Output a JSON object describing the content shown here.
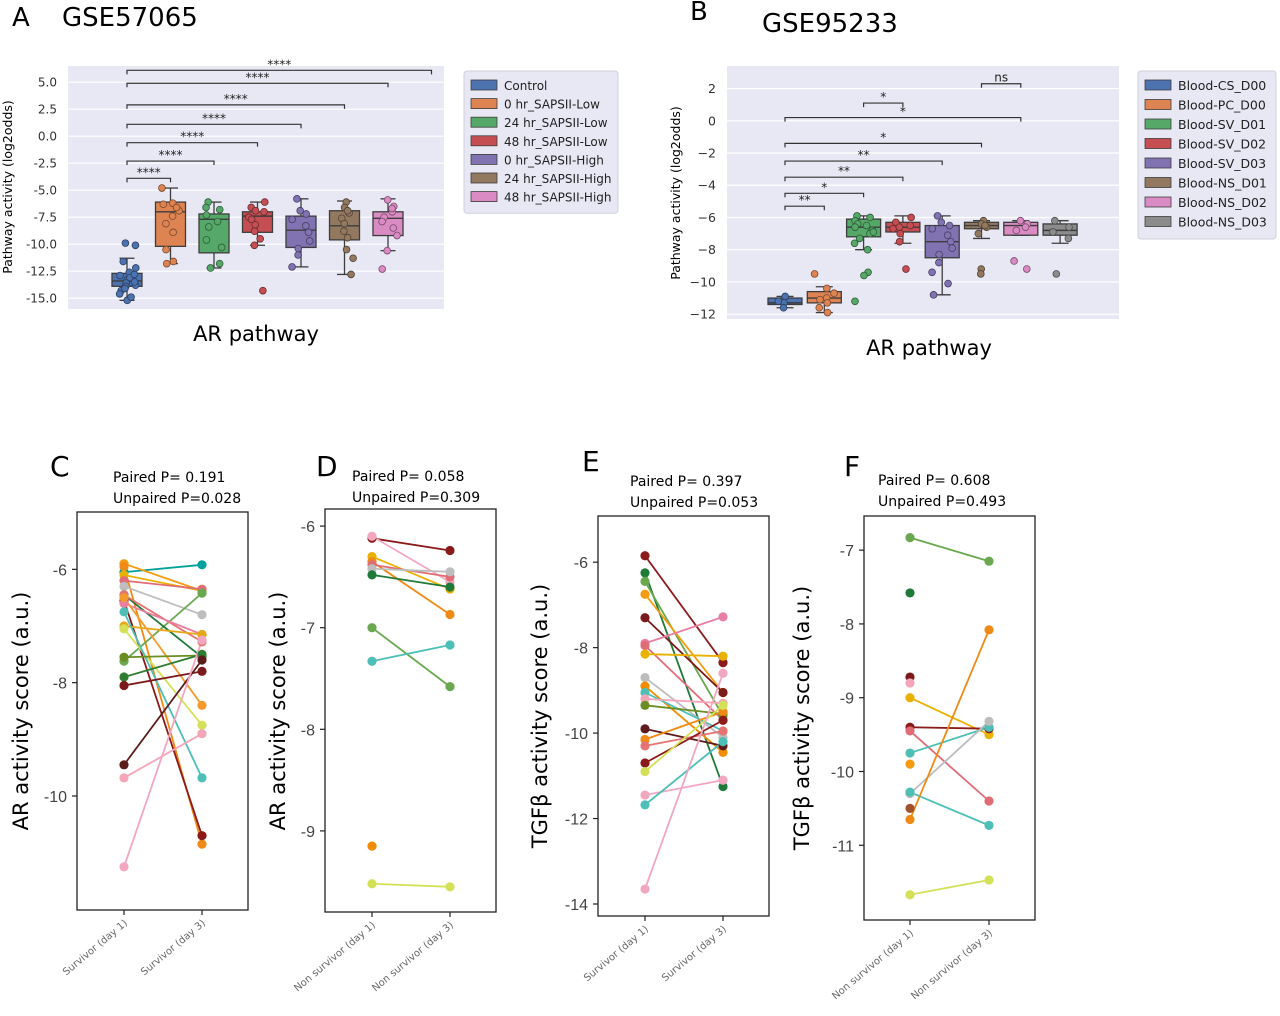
{
  "figure": {
    "panel_A_letter": "A",
    "panel_A_title": "GSE57065",
    "panel_B_letter": "B",
    "panel_B_title": "GSE95233",
    "panel_C_letter": "C",
    "panel_D_letter": "D",
    "panel_E_letter": "E",
    "panel_F_letter": "F"
  },
  "colors": {
    "plot_bg": "#e8e8f4",
    "grid": "#ffffff"
  },
  "chart_data": [
    {
      "id": "A",
      "type": "box",
      "title": "GSE57065",
      "xlabel": "AR pathway",
      "ylabel": "Pathway activity (log2odds)",
      "ylim": [
        -16,
        6.5
      ],
      "yticks": [
        5.0,
        2.5,
        0.0,
        -2.5,
        -5.0,
        -7.5,
        -10.0,
        -12.5,
        -15.0
      ],
      "ytick_labels": [
        "5.0",
        "2.5",
        "0.0",
        "-2.5",
        "-5.0",
        "-7.5",
        "-10.0",
        "-12.5",
        "-15.0"
      ],
      "grid": true,
      "legend_position": "outside-right",
      "groups": [
        {
          "name": "Control",
          "color": "#4c72b0",
          "q1": -13.9,
          "median": -13.4,
          "q3": -12.7,
          "wlo": -15.2,
          "whi": -11.3,
          "points": [
            -13.3,
            -13.6,
            -13.9,
            -14.3,
            -14.6,
            -15.2,
            -12.9,
            -12.6,
            -13.1,
            -12.2,
            -11.6,
            -13.8,
            -14.1,
            -14.9,
            -10.1,
            -9.9,
            -12.8,
            -13.5
          ]
        },
        {
          "name": "0 hr_SAPSII-Low",
          "color": "#dd8452",
          "q1": -10.2,
          "median": -7.0,
          "q3": -6.1,
          "wlo": -11.8,
          "whi": -4.8,
          "points": [
            -4.8,
            -6.2,
            -6.9,
            -7.4,
            -8.9,
            -10.5,
            -11.6,
            -11.8,
            -6.6,
            -8.1,
            -6.3
          ]
        },
        {
          "name": "24 hr_SAPSII-Low",
          "color": "#55a868",
          "q1": -10.8,
          "median": -7.7,
          "q3": -7.2,
          "wlo": -12.2,
          "whi": -6.1,
          "points": [
            -6.1,
            -6.8,
            -7.3,
            -8.4,
            -9.6,
            -10.3,
            -11.8,
            -12.2,
            -6.6,
            -7.9
          ]
        },
        {
          "name": "48 hr_SAPSII-Low",
          "color": "#c44e52",
          "q1": -8.9,
          "median": -7.4,
          "q3": -7.0,
          "wlo": -10.1,
          "whi": -6.1,
          "points": [
            -6.1,
            -6.6,
            -7.0,
            -7.5,
            -8.2,
            -8.8,
            -9.5,
            -10.1,
            -14.3,
            -6.9,
            -7.7
          ]
        },
        {
          "name": "0 hr_SAPSII-High",
          "color": "#8172b2",
          "q1": -10.3,
          "median": -8.7,
          "q3": -7.4,
          "wlo": -12.1,
          "whi": -5.8,
          "points": [
            -5.8,
            -6.9,
            -7.7,
            -8.3,
            -8.9,
            -9.7,
            -10.4,
            -11.0,
            -12.1,
            -7.2
          ]
        },
        {
          "name": "24 hr_SAPSII-High",
          "color": "#937860",
          "q1": -9.6,
          "median": -8.3,
          "q3": -6.9,
          "wlo": -12.8,
          "whi": -6.0,
          "points": [
            -6.1,
            -6.6,
            -7.1,
            -7.6,
            -8.1,
            -8.8,
            -9.4,
            -10.5,
            -11.3,
            -12.8,
            -6.9
          ]
        },
        {
          "name": "48 hr_SAPSII-High",
          "color": "#da8bc3",
          "q1": -9.2,
          "median": -7.6,
          "q3": -7.0,
          "wlo": -10.6,
          "whi": -5.8,
          "points": [
            -5.9,
            -6.5,
            -7.0,
            -7.5,
            -7.9,
            -8.5,
            -9.2,
            -10.6,
            -12.3,
            -6.7
          ]
        }
      ],
      "significance": [
        {
          "from": 0,
          "to": 1,
          "y": -3.9,
          "label": "****"
        },
        {
          "from": 0,
          "to": 2,
          "y": -2.3,
          "label": "****"
        },
        {
          "from": 0,
          "to": 3,
          "y": -0.6,
          "label": "****"
        },
        {
          "from": 0,
          "to": 4,
          "y": 1.1,
          "label": "****"
        },
        {
          "from": 0,
          "to": 5,
          "y": 2.9,
          "label": "****"
        },
        {
          "from": 0,
          "to": 6,
          "y": 4.9,
          "label": "****"
        },
        {
          "from": 0,
          "to": 7,
          "y": 6.1,
          "label": "****"
        }
      ]
    },
    {
      "id": "B",
      "type": "box",
      "title": "GSE95233",
      "xlabel": "AR pathway",
      "ylabel": "Pathway activity (log2odds)",
      "ylim": [
        -12.3,
        3.4
      ],
      "yticks": [
        2,
        0,
        -2,
        -4,
        -6,
        -8,
        -10,
        -12
      ],
      "ytick_labels": [
        "2",
        "0",
        "−2",
        "−4",
        "−6",
        "−8",
        "−10",
        "−12"
      ],
      "grid": true,
      "legend_position": "outside-right",
      "groups": [
        {
          "name": "Blood-CS_D00",
          "color": "#4c72b0",
          "q1": -11.4,
          "median": -11.3,
          "q3": -11.0,
          "wlo": -11.6,
          "whi": -10.9,
          "points": [
            -10.9,
            -11.3,
            -11.6,
            -11.2
          ]
        },
        {
          "name": "Blood-PC_D00",
          "color": "#dd8452",
          "q1": -11.3,
          "median": -11.0,
          "q3": -10.6,
          "wlo": -11.9,
          "whi": -10.3,
          "points": [
            -9.5,
            -10.4,
            -10.7,
            -11.0,
            -11.3,
            -11.6,
            -11.9,
            -11.1
          ]
        },
        {
          "name": "Blood-SV_D01",
          "color": "#55a868",
          "q1": -7.2,
          "median": -6.6,
          "q3": -6.1,
          "wlo": -8.0,
          "whi": -5.9,
          "points": [
            -5.9,
            -6.0,
            -6.2,
            -6.4,
            -6.6,
            -6.8,
            -7.0,
            -7.3,
            -7.6,
            -8.0,
            -9.4,
            -9.6,
            -11.2,
            -6.5,
            -6.9
          ]
        },
        {
          "name": "Blood-SV_D02",
          "color": "#c44e52",
          "q1": -6.9,
          "median": -6.6,
          "q3": -6.3,
          "wlo": -7.6,
          "whi": -5.9,
          "points": [
            -6.0,
            -6.3,
            -6.5,
            -6.7,
            -7.0,
            -7.5,
            -9.2,
            -6.6
          ]
        },
        {
          "name": "Blood-SV_D03",
          "color": "#8172b2",
          "q1": -8.5,
          "median": -7.5,
          "q3": -6.5,
          "wlo": -10.8,
          "whi": -5.9,
          "points": [
            -5.9,
            -6.3,
            -6.7,
            -7.1,
            -7.5,
            -7.9,
            -8.3,
            -8.8,
            -9.4,
            -10.1,
            -10.8,
            -6.5
          ]
        },
        {
          "name": "Blood-NS_D01",
          "color": "#937860",
          "q1": -6.7,
          "median": -6.5,
          "q3": -6.3,
          "wlo": -7.3,
          "whi": -6.2,
          "points": [
            -6.2,
            -6.4,
            -6.6,
            -7.0,
            -9.2,
            -9.5,
            -6.5
          ]
        },
        {
          "name": "Blood-NS_D02",
          "color": "#da8bc3",
          "q1": -7.1,
          "median": -6.5,
          "q3": -6.3,
          "wlo": -7.1,
          "whi": -6.2,
          "points": [
            -6.2,
            -6.4,
            -6.6,
            -6.8,
            -8.7,
            -9.2
          ]
        },
        {
          "name": "Blood-NS_D03",
          "color": "#8c8c8c",
          "q1": -7.1,
          "median": -6.8,
          "q3": -6.4,
          "wlo": -7.6,
          "whi": -6.2,
          "points": [
            -6.2,
            -6.6,
            -6.9,
            -7.3,
            -9.5
          ]
        }
      ],
      "significance": [
        {
          "from": 0,
          "to": 1,
          "y": -5.3,
          "label": "**"
        },
        {
          "from": 0,
          "to": 2,
          "y": -4.5,
          "label": "*"
        },
        {
          "from": 0,
          "to": 3,
          "y": -3.5,
          "label": "**"
        },
        {
          "from": 0,
          "to": 4,
          "y": -2.5,
          "label": "**"
        },
        {
          "from": 0,
          "to": 5,
          "y": -1.4,
          "label": "*"
        },
        {
          "from": 0,
          "to": 6,
          "y": 0.2,
          "label": "*"
        },
        {
          "from": 2,
          "to": 3,
          "y": 1.1,
          "label": "*"
        },
        {
          "from": 5,
          "to": 6,
          "y": 2.3,
          "label": "ns"
        }
      ]
    },
    {
      "id": "C",
      "type": "line",
      "stat_paired": "Paired P= 0.191",
      "stat_unpaired": "Unpaired P=0.028",
      "ylabel": "AR activity score (a.u.)",
      "categories": [
        "Survivor (day 1)",
        "Survivor (day 3)"
      ],
      "ylim": [
        -11.8,
        -5.2
      ],
      "yticks": [
        -6,
        -8,
        -10
      ],
      "ytick_labels": [
        "-6",
        "-8",
        "-10"
      ],
      "pairs": [
        {
          "color": "#00a19a",
          "y1": -6.05,
          "y2": -5.92
        },
        {
          "color": "#f39c12",
          "y1": -5.9,
          "y2": -6.38
        },
        {
          "color": "#ef8a16",
          "y1": -5.95,
          "y2": -10.85
        },
        {
          "color": "#e9b100",
          "y1": -6.1,
          "y2": -6.38
        },
        {
          "color": "#8b1a1a",
          "y1": -6.55,
          "y2": -10.7
        },
        {
          "color": "#e06c75",
          "y1": -6.2,
          "y2": -6.35
        },
        {
          "color": "#bdbdbd",
          "y1": -6.3,
          "y2": -6.8
        },
        {
          "color": "#6aa84f",
          "y1": -7.62,
          "y2": -6.42
        },
        {
          "color": "#1f7a3a",
          "y1": -6.45,
          "y2": -7.55
        },
        {
          "color": "#e57373",
          "y1": -6.45,
          "y2": -7.28
        },
        {
          "color": "#e87fa1",
          "y1": -6.6,
          "y2": -7.15
        },
        {
          "color": "#e6a817",
          "y1": -7.0,
          "y2": -7.15
        },
        {
          "color": "#d4e157",
          "y1": -7.05,
          "y2": -8.75
        },
        {
          "color": "#4dbfb6",
          "y1": -6.75,
          "y2": -9.68
        },
        {
          "color": "#f29a2e",
          "y1": -6.5,
          "y2": -8.4
        },
        {
          "color": "#6b8e23",
          "y1": -7.55,
          "y2": -7.52
        },
        {
          "color": "#2e7d32",
          "y1": -7.9,
          "y2": -7.5
        },
        {
          "color": "#7b1a1a",
          "y1": -8.05,
          "y2": -7.8
        },
        {
          "color": "#5d1c1c",
          "y1": -9.45,
          "y2": -7.6
        },
        {
          "color": "#f4a6b8",
          "y1": -9.68,
          "y2": -8.9
        },
        {
          "color": "#f2a7c0",
          "y1": -11.25,
          "y2": -7.25
        }
      ]
    },
    {
      "id": "D",
      "type": "line",
      "stat_paired": "Paired P= 0.058",
      "stat_unpaired": "Unpaired P=0.309",
      "ylabel": "AR activity score (a.u.)",
      "categories": [
        "Non survivor (day 1)",
        "Non survivor (day 3)"
      ],
      "ylim": [
        -9.68,
        -5.95
      ],
      "yticks": [
        -6,
        -7,
        -8,
        -9
      ],
      "ytick_labels": [
        "-6",
        "-7",
        "-8",
        "-9"
      ],
      "pairs": [
        {
          "color": "#8b1a1a",
          "y1": -6.12,
          "y2": -6.24
        },
        {
          "color": "#f2a7c0",
          "y1": -6.1,
          "y2": -6.55
        },
        {
          "color": "#e9b100",
          "y1": -6.3,
          "y2": -6.62
        },
        {
          "color": "#ef8a16",
          "y1": -6.35,
          "y2": -6.87
        },
        {
          "color": "#e06c75",
          "y1": -6.38,
          "y2": -6.5
        },
        {
          "color": "#bdbdbd",
          "y1": -6.42,
          "y2": -6.45
        },
        {
          "color": "#1f7a3a",
          "y1": -6.48,
          "y2": -6.6
        },
        {
          "color": "#6aa84f",
          "y1": -7.0,
          "y2": -7.58
        },
        {
          "color": "#4dbfb6",
          "y1": -7.33,
          "y2": -7.17
        },
        {
          "color": "#d4e157",
          "y1": -9.52,
          "y2": -9.55
        },
        {
          "color": "#f28c00",
          "y1": -9.15,
          "y2": null
        }
      ]
    },
    {
      "id": "E",
      "type": "line",
      "stat_paired": "Paired P= 0.397",
      "stat_unpaired": "Unpaired P=0.053",
      "ylabel": "TGFβ activity score (a.u.)",
      "categories": [
        "Survivor (day 1)",
        "Survivor (day 3)"
      ],
      "ylim": [
        -14.0,
        -5.2
      ],
      "yticks": [
        -6,
        -8,
        -10,
        -12,
        -14
      ],
      "ytick_labels": [
        "-6",
        "-8",
        "-10",
        "-12",
        "-14"
      ],
      "pairs": [
        {
          "color": "#8b1a1a",
          "y1": -5.85,
          "y2": -8.35
        },
        {
          "color": "#1f7a3a",
          "y1": -6.25,
          "y2": -11.25
        },
        {
          "color": "#6aa84f",
          "y1": -6.45,
          "y2": -9.6
        },
        {
          "color": "#f39c12",
          "y1": -6.75,
          "y2": -9.05
        },
        {
          "color": "#7b1a1a",
          "y1": -7.3,
          "y2": -9.05
        },
        {
          "color": "#e87fa1",
          "y1": -7.9,
          "y2": -7.28
        },
        {
          "color": "#e06c75",
          "y1": -7.95,
          "y2": -9.7
        },
        {
          "color": "#e9b100",
          "y1": -8.15,
          "y2": -8.2
        },
        {
          "color": "#bdbdbd",
          "y1": -8.7,
          "y2": -10.1
        },
        {
          "color": "#f28c00",
          "y1": -8.9,
          "y2": -10.45
        },
        {
          "color": "#4dbfb6",
          "y1": -9.05,
          "y2": -9.95
        },
        {
          "color": "#f4a6b8",
          "y1": -9.2,
          "y2": -9.3
        },
        {
          "color": "#6b8e23",
          "y1": -9.35,
          "y2": -9.55
        },
        {
          "color": "#5d1c1c",
          "y1": -9.9,
          "y2": -10.3
        },
        {
          "color": "#ef8a16",
          "y1": -10.15,
          "y2": -9.5
        },
        {
          "color": "#e57373",
          "y1": -10.3,
          "y2": -9.95
        },
        {
          "color": "#8b1a1a",
          "y1": -10.7,
          "y2": -9.7
        },
        {
          "color": "#d4e157",
          "y1": -10.9,
          "y2": -9.35
        },
        {
          "color": "#f2a7c0",
          "y1": -11.45,
          "y2": -11.1
        },
        {
          "color": "#4dbfb6",
          "y1": -11.68,
          "y2": -10.2
        },
        {
          "color": "#f2a7c0",
          "y1": -13.65,
          "y2": -8.6
        }
      ]
    },
    {
      "id": "F",
      "type": "line",
      "stat_paired": "Paired P= 0.608",
      "stat_unpaired": "Unpaired P=0.493",
      "ylabel": "TGFβ activity score (a.u.)",
      "categories": [
        "Non survivor (day 1)",
        "Non survivor (day 3)"
      ],
      "ylim": [
        -11.85,
        -6.7
      ],
      "yticks": [
        -7,
        -8,
        -9,
        -10,
        -11
      ],
      "ytick_labels": [
        "-7",
        "-8",
        "-9",
        "-10",
        "-11"
      ],
      "pairs": [
        {
          "color": "#6aa84f",
          "y1": -6.83,
          "y2": -7.15
        },
        {
          "color": "#e9b100",
          "y1": -9.0,
          "y2": -9.5
        },
        {
          "color": "#8b1a1a",
          "y1": -9.4,
          "y2": -9.42
        },
        {
          "color": "#e06c75",
          "y1": -9.45,
          "y2": -10.4
        },
        {
          "color": "#4dbfb6",
          "y1": -9.75,
          "y2": -9.4
        },
        {
          "color": "#bdbdbd",
          "y1": -10.3,
          "y2": -9.32
        },
        {
          "color": "#4dbfb6",
          "y1": -10.28,
          "y2": -10.73
        },
        {
          "color": "#ef8a16",
          "y1": -10.65,
          "y2": -8.08
        },
        {
          "color": "#d4e157",
          "y1": -11.67,
          "y2": -11.47
        },
        {
          "color": "#1f7a3a",
          "y1": -7.58,
          "y2": null
        },
        {
          "color": "#7b1a1a",
          "y1": -8.72,
          "y2": null
        },
        {
          "color": "#f4a6b8",
          "y1": -8.8,
          "y2": null
        },
        {
          "color": "#f39c12",
          "y1": -9.9,
          "y2": null
        },
        {
          "color": "#a0522d",
          "y1": -10.5,
          "y2": null
        }
      ]
    }
  ]
}
